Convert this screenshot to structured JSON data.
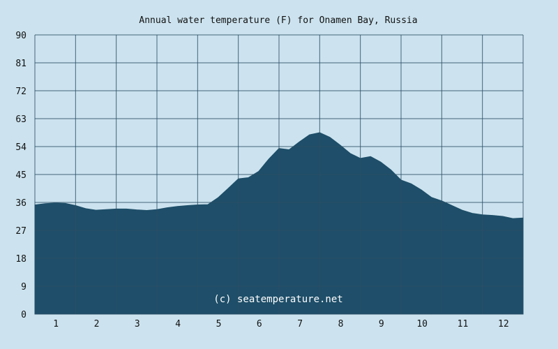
{
  "chart_data": {
    "type": "area",
    "title": "Annual water temperature (F) for Onamen Bay, Russia",
    "xlabel": "",
    "ylabel": "",
    "categories": [
      "1",
      "2",
      "3",
      "4",
      "5",
      "6",
      "7",
      "8",
      "9",
      "10",
      "11",
      "12"
    ],
    "xlim": [
      0.5,
      12.5
    ],
    "ylim": [
      0,
      90
    ],
    "yticks": [
      0,
      9,
      18,
      27,
      36,
      45,
      54,
      63,
      72,
      81,
      90
    ],
    "grid": true,
    "legend": "none",
    "colors": {
      "background": "#cce3ef",
      "plot_background": "#cce3ef",
      "area_fill": "#1e4e69",
      "grid": "#2c4f66"
    },
    "series": [
      {
        "x": [
          0.5,
          0.75,
          1.0,
          1.25,
          1.5,
          1.75,
          2.0,
          2.25,
          2.5,
          2.75,
          3.0,
          3.25,
          3.5,
          3.75,
          4.0,
          4.25,
          4.5,
          4.75,
          5.0,
          5.25,
          5.5,
          5.75,
          6.0,
          6.25,
          6.5,
          6.75,
          7.0,
          7.25,
          7.5,
          7.75,
          8.0,
          8.25,
          8.5,
          8.75,
          9.0,
          9.25,
          9.5,
          9.75,
          10.0,
          10.25,
          10.5,
          10.75,
          11.0,
          11.25,
          11.5,
          11.75,
          12.0,
          12.25,
          12.5
        ],
        "values": [
          35.2,
          35.6,
          35.8,
          35.7,
          35.0,
          34.0,
          33.5,
          33.7,
          33.9,
          33.9,
          33.6,
          33.4,
          33.7,
          34.3,
          34.7,
          35.0,
          35.2,
          35.3,
          37.5,
          40.5,
          43.6,
          44.0,
          46.0,
          50.0,
          53.4,
          53.0,
          55.5,
          57.8,
          58.5,
          57.0,
          54.5,
          51.8,
          50.2,
          50.8,
          49.0,
          46.5,
          43.2,
          42.0,
          40.0,
          37.6,
          36.5,
          35.0,
          33.5,
          32.5,
          32.0,
          31.8,
          31.5,
          30.8,
          31.0
        ]
      }
    ],
    "watermark": "(c) seatemperature.net"
  }
}
